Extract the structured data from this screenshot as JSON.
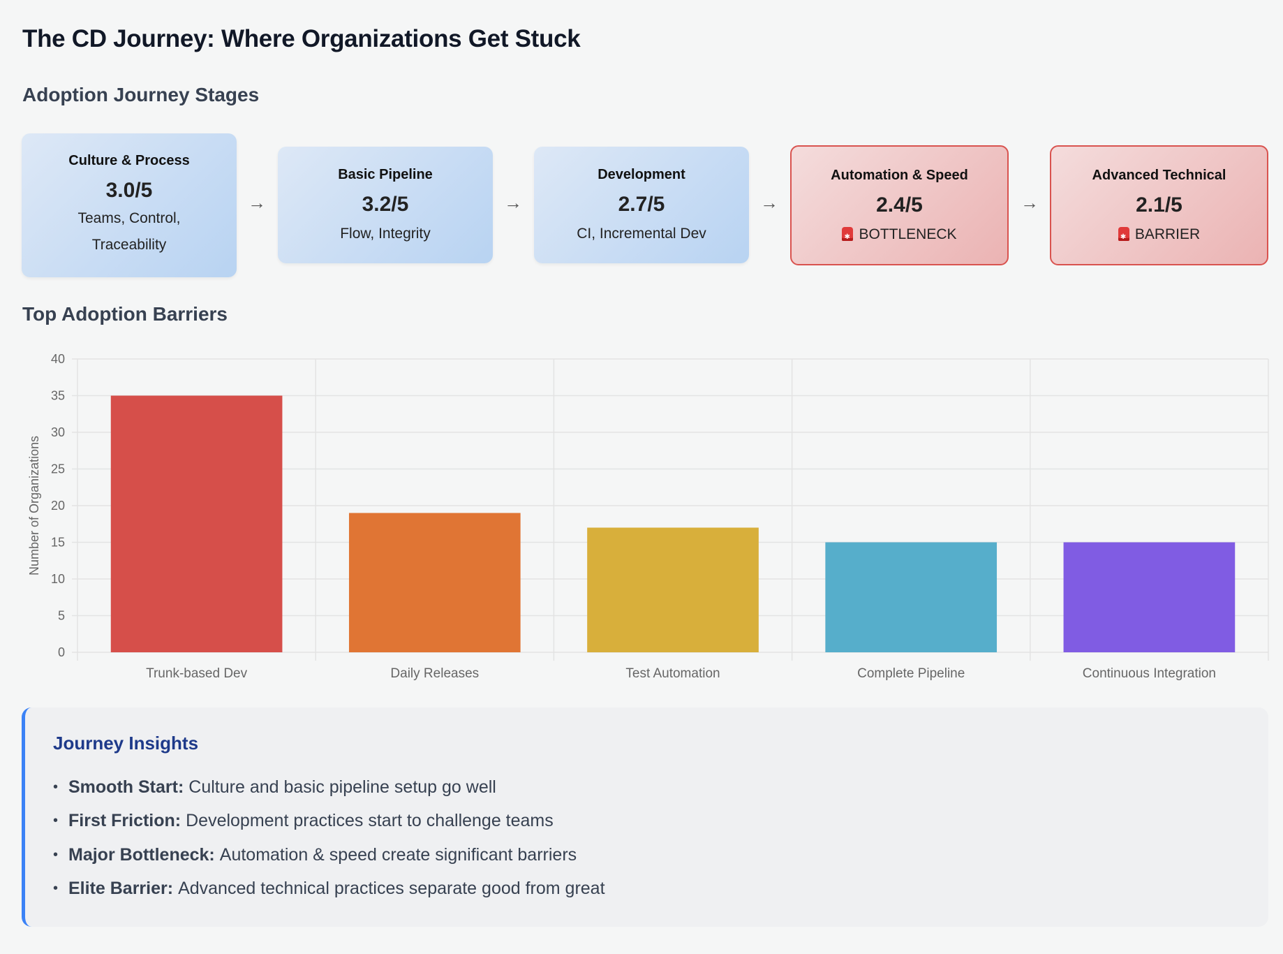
{
  "title": "The CD Journey: Where Organizations Get Stuck",
  "sections": {
    "stages_heading": "Adoption Journey Stages",
    "barriers_heading": "Top Adoption Barriers"
  },
  "stages": [
    {
      "name": "Culture & Process",
      "score": "3.0/5",
      "desc": "Teams, Control, Traceability",
      "desc_lines": [
        "Teams, Control,",
        "Traceability"
      ],
      "status": "good"
    },
    {
      "name": "Basic Pipeline",
      "score": "3.2/5",
      "desc": "Flow, Integrity",
      "desc_lines": [
        "Flow, Integrity"
      ],
      "status": "good"
    },
    {
      "name": "Development",
      "score": "2.7/5",
      "desc": "CI, Incremental Dev",
      "desc_lines": [
        "CI, Incremental Dev"
      ],
      "status": "good"
    },
    {
      "name": "Automation & Speed",
      "score": "2.4/5",
      "desc": "BOTTLENECK",
      "desc_lines": [
        "BOTTLENECK"
      ],
      "status": "bad",
      "icon": "police-light-icon"
    },
    {
      "name": "Advanced Technical",
      "score": "2.1/5",
      "desc": "BARRIER",
      "desc_lines": [
        "BARRIER"
      ],
      "status": "bad",
      "icon": "police-light-icon"
    }
  ],
  "arrow_glyph": "→",
  "chart_data": {
    "type": "bar",
    "title": "Top Adoption Barriers",
    "categories": [
      "Trunk-based Dev",
      "Daily Releases",
      "Test Automation",
      "Complete Pipeline",
      "Continuous Integration"
    ],
    "values": [
      35,
      19,
      17,
      15,
      15
    ],
    "colors": [
      "#d64f4a",
      "#e07534",
      "#d8af3b",
      "#56aecb",
      "#805ce3"
    ],
    "xlabel": "",
    "ylabel": "Number of Organizations",
    "ylim": [
      0,
      40
    ],
    "yticks": [
      0,
      5,
      10,
      15,
      20,
      25,
      30,
      35,
      40
    ],
    "grid": true,
    "legend": "none"
  },
  "insights": {
    "title": "Journey Insights",
    "items": [
      {
        "label": "Smooth Start:",
        "text": "Culture and basic pipeline setup go well"
      },
      {
        "label": "First Friction:",
        "text": "Development practices start to challenge teams"
      },
      {
        "label": "Major Bottleneck:",
        "text": "Automation & speed create significant barriers"
      },
      {
        "label": "Elite Barrier:",
        "text": "Advanced technical practices separate good from great"
      }
    ]
  }
}
